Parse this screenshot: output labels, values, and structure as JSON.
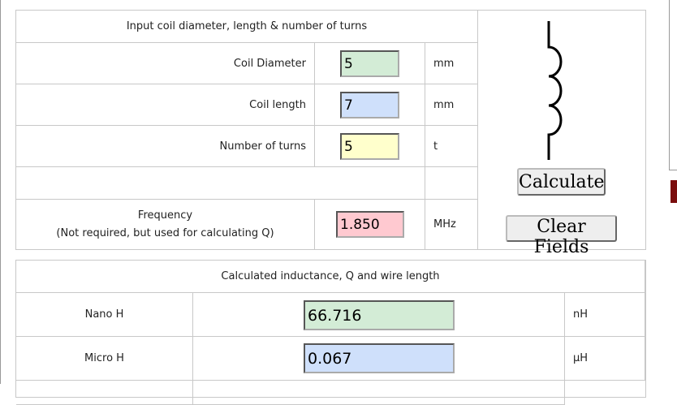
{
  "top_table": {
    "header": "Input coil diameter, length & number of turns",
    "rows": [
      {
        "label": "Coil Diameter",
        "value": "5",
        "unit": "mm"
      },
      {
        "label": "Coil length",
        "value": "7",
        "unit": "mm"
      },
      {
        "label": "Number of turns",
        "value": "5",
        "unit": "t"
      }
    ],
    "frequency": {
      "label_line1": "Frequency",
      "label_line2": "(Not required, but used for calculating Q)",
      "value": "1.850",
      "unit": "MHz"
    }
  },
  "buttons": {
    "calculate": "Calculate",
    "clear": "Clear Fields"
  },
  "results": {
    "header": "Calculated inductance, Q and wire length",
    "rows": [
      {
        "label": "Nano H",
        "value": "66.716",
        "unit": "nH"
      },
      {
        "label": "Micro H",
        "value": "0.067",
        "unit": "µH"
      }
    ]
  }
}
